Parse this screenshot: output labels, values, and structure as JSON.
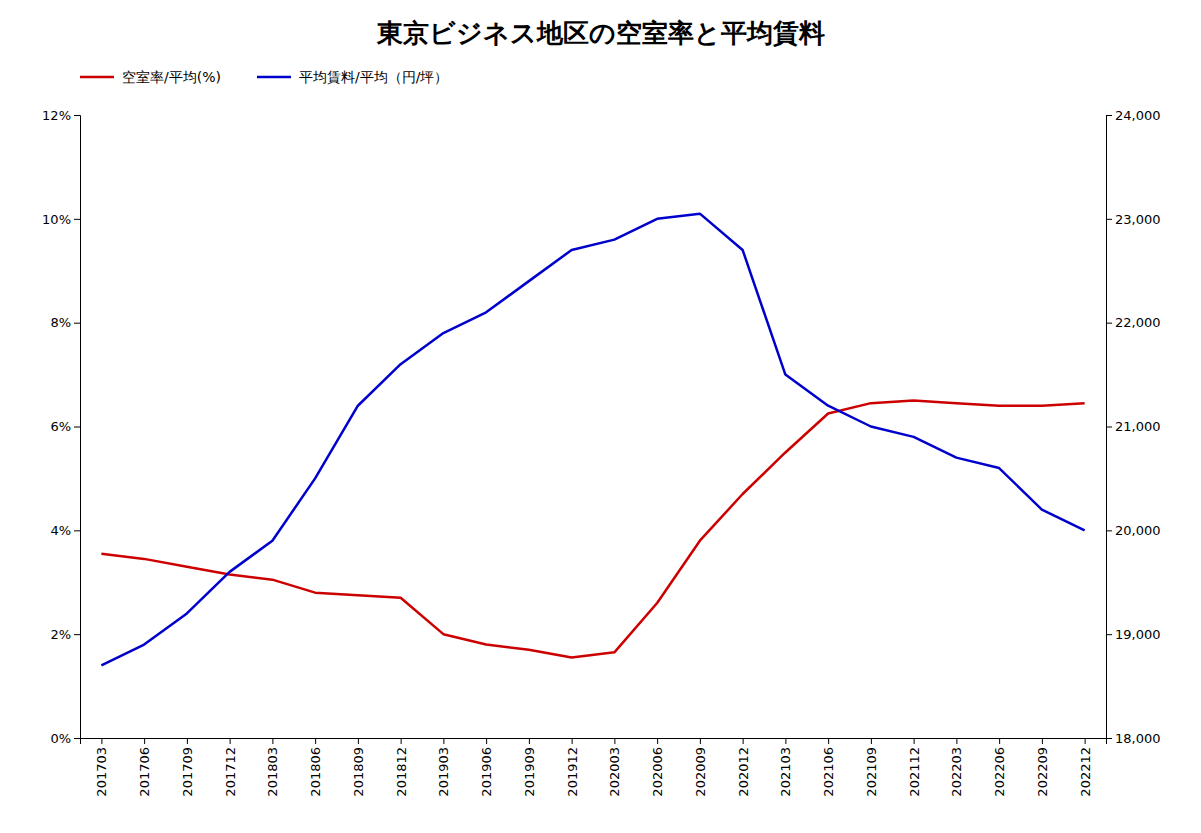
{
  "chart_data": {
    "type": "line",
    "title": "東京ビジネス地区の空室率と平均賃料",
    "categories": [
      "201703",
      "201706",
      "201709",
      "201712",
      "201803",
      "201806",
      "201809",
      "201812",
      "201903",
      "201906",
      "201909",
      "201912",
      "202003",
      "202006",
      "202009",
      "202012",
      "202103",
      "202106",
      "202109",
      "202112",
      "202203",
      "202206",
      "202209",
      "202212"
    ],
    "series": [
      {
        "name": "空室率/平均(%)",
        "color": "#cc0000",
        "values": [
          3.55,
          3.45,
          3.3,
          3.15,
          3.05,
          2.8,
          2.75,
          2.7,
          2.0,
          1.8,
          1.7,
          1.55,
          1.65,
          2.6,
          3.8,
          4.7,
          5.5,
          6.25,
          6.45,
          6.5,
          6.45,
          6.4,
          6.4,
          6.45
        ]
      },
      {
        "name": "平均賃料/平均（円/坪）",
        "color": "#0000cc",
        "axis": "y2",
        "values": [
          18700,
          18900,
          19200,
          19600,
          19900,
          20500,
          21200,
          21600,
          21900,
          22100,
          22400,
          22700,
          22800,
          23000,
          23050,
          22700,
          21500,
          21200,
          21000,
          20900,
          20700,
          20600,
          20200,
          20000
        ]
      }
    ],
    "ylim": [
      0,
      12
    ],
    "yticks": [
      {
        "value": 0,
        "label": "0%"
      },
      {
        "value": 2,
        "label": "2%"
      },
      {
        "value": 4,
        "label": "4%"
      },
      {
        "value": 6,
        "label": "6%"
      },
      {
        "value": 8,
        "label": "8%"
      },
      {
        "value": 10,
        "label": "10%"
      },
      {
        "value": 12,
        "label": "12%"
      }
    ],
    "y2lim": [
      18000,
      24000
    ],
    "y2ticks": [
      {
        "value": 18000,
        "label": "18,000"
      },
      {
        "value": 19000,
        "label": "19,000"
      },
      {
        "value": 20000,
        "label": "20,000"
      },
      {
        "value": 21000,
        "label": "21,000"
      },
      {
        "value": 22000,
        "label": "22,000"
      },
      {
        "value": 23000,
        "label": "23,000"
      },
      {
        "value": 24000,
        "label": "24,000"
      }
    ],
    "grid": false,
    "legend": "top"
  }
}
